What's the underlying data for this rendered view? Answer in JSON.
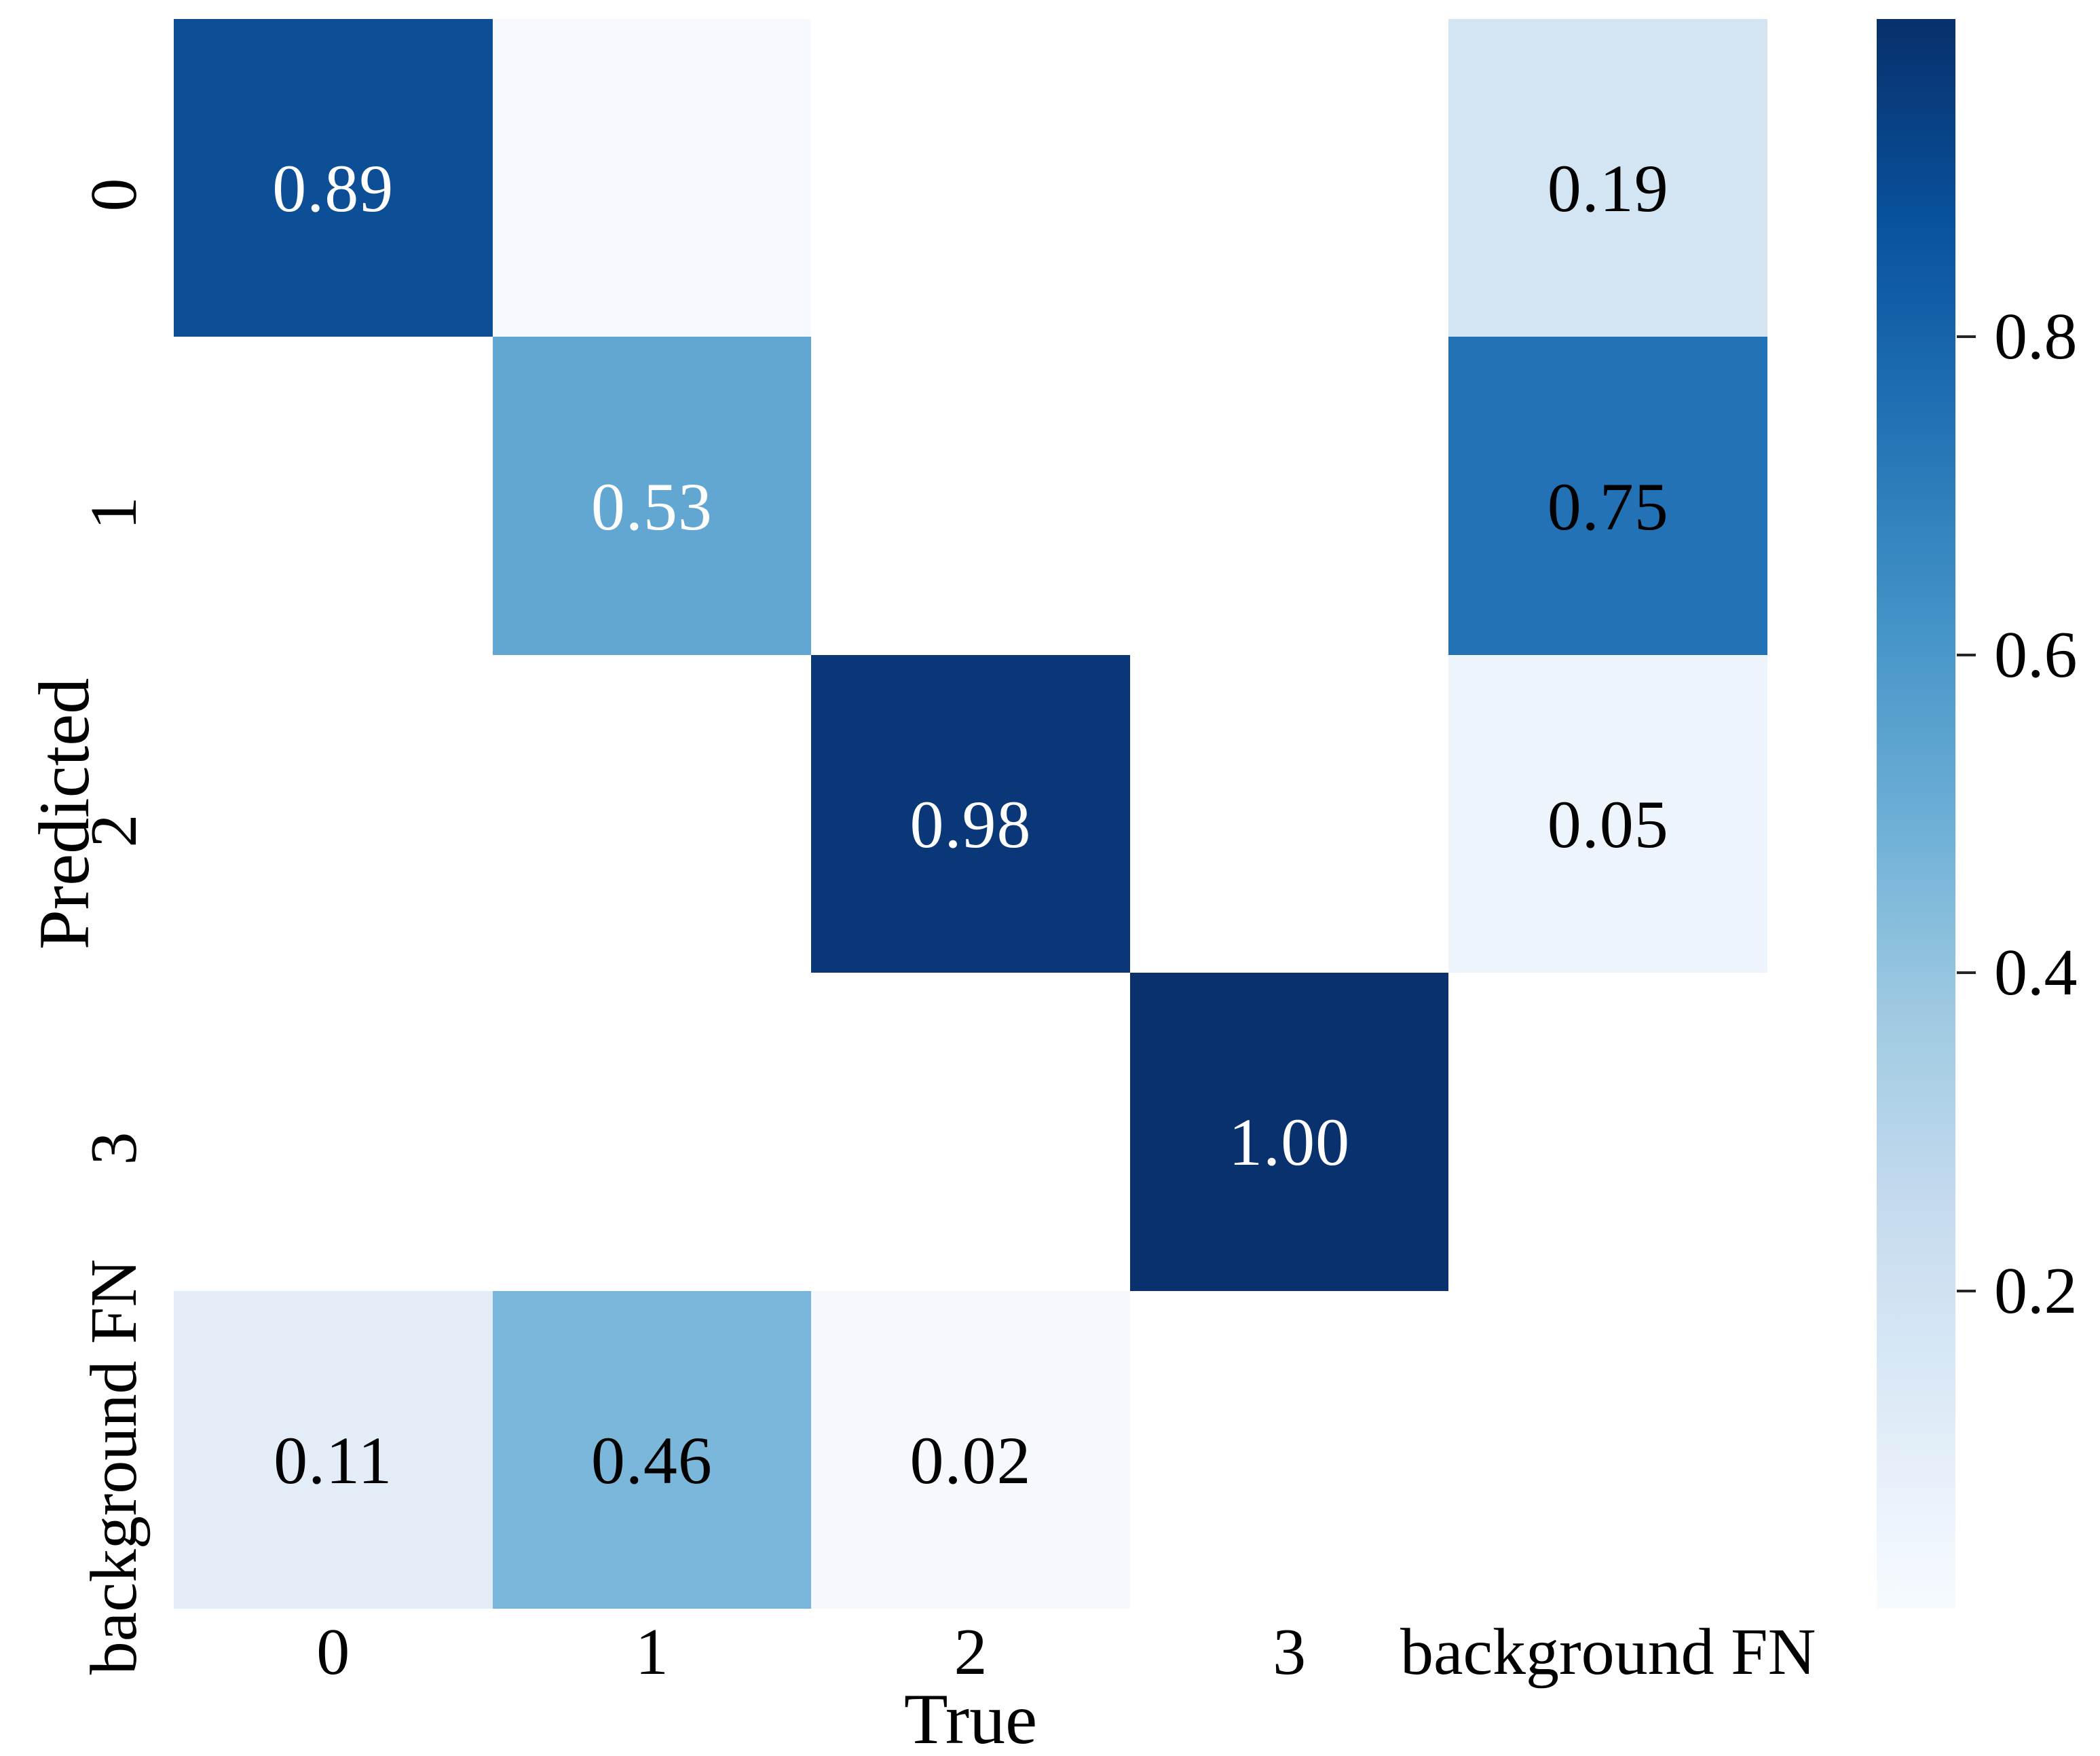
{
  "figure": {
    "background": "#ffffff",
    "colormap_name": "Blues"
  },
  "chart_data": {
    "type": "heatmap",
    "title": "",
    "xlabel": "True",
    "ylabel": "Predicted",
    "x_categories": [
      "0",
      "1",
      "2",
      "3",
      "background FN"
    ],
    "y_categories": [
      "0",
      "1",
      "2",
      "3",
      "background FN"
    ],
    "vmin": 0.0,
    "vmax": 1.0,
    "grid": false,
    "matrix_note": "rows = Predicted, cols = True; null = empty white cell",
    "matrix": [
      [
        0.89,
        0.0,
        null,
        null,
        0.19
      ],
      [
        null,
        0.53,
        null,
        null,
        0.75
      ],
      [
        null,
        null,
        0.98,
        null,
        0.05
      ],
      [
        null,
        null,
        null,
        1.0,
        null
      ],
      [
        0.11,
        0.46,
        0.02,
        null,
        null
      ]
    ],
    "cells": [
      {
        "row": 0,
        "col": 0,
        "value": 0.89,
        "label": "0.89",
        "color": "#0d4f97",
        "text_color": "#ffffff"
      },
      {
        "row": 0,
        "col": 1,
        "value": 0.0,
        "label": "",
        "color": "#f6fafe",
        "text_color": "#000000"
      },
      {
        "row": 0,
        "col": 4,
        "value": 0.19,
        "label": "0.19",
        "color": "#d3e4f3",
        "text_color": "#000000"
      },
      {
        "row": 1,
        "col": 1,
        "value": 0.53,
        "label": "0.53",
        "color": "#61a7d2",
        "text_color": "#ffffff"
      },
      {
        "row": 1,
        "col": 4,
        "value": 0.75,
        "label": "0.75",
        "color": "#2272b5",
        "text_color": "#000000"
      },
      {
        "row": 2,
        "col": 2,
        "value": 0.98,
        "label": "0.98",
        "color": "#0a3777",
        "text_color": "#ffffff"
      },
      {
        "row": 2,
        "col": 4,
        "value": 0.05,
        "label": "0.05",
        "color": "#edf4fb",
        "text_color": "#000000"
      },
      {
        "row": 3,
        "col": 3,
        "value": 1.0,
        "label": "1.00",
        "color": "#09316e",
        "text_color": "#ffffff"
      },
      {
        "row": 4,
        "col": 0,
        "value": 0.11,
        "label": "0.11",
        "color": "#e2edf8",
        "text_color": "#000000"
      },
      {
        "row": 4,
        "col": 1,
        "value": 0.46,
        "label": "0.46",
        "color": "#7bb7da",
        "text_color": "#000000"
      },
      {
        "row": 4,
        "col": 2,
        "value": 0.02,
        "label": "0.02",
        "color": "#f5f9fd",
        "text_color": "#000000"
      }
    ],
    "colorbar": {
      "position": "right",
      "tick_labels": [
        "0.8",
        "0.6",
        "0.4",
        "0.2"
      ],
      "tick_values": [
        0.8,
        0.6,
        0.4,
        0.2
      ],
      "gradient_stops": [
        {
          "pct": 0,
          "color": "#f7fbff"
        },
        {
          "pct": 12.5,
          "color": "#deebf7"
        },
        {
          "pct": 25,
          "color": "#c6dbef"
        },
        {
          "pct": 37.5,
          "color": "#9ecae1"
        },
        {
          "pct": 50,
          "color": "#6baed6"
        },
        {
          "pct": 62.5,
          "color": "#4292c6"
        },
        {
          "pct": 75,
          "color": "#2171b5"
        },
        {
          "pct": 87.5,
          "color": "#08519c"
        },
        {
          "pct": 100,
          "color": "#08306b"
        }
      ]
    }
  }
}
